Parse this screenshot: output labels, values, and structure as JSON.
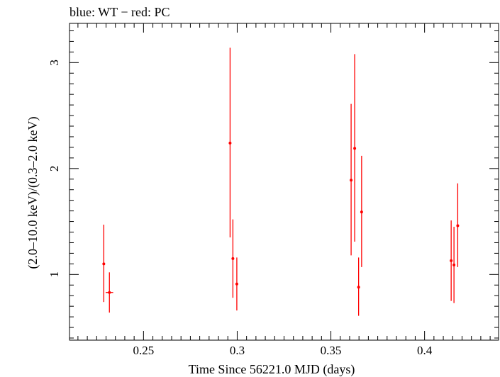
{
  "chart_data": {
    "type": "scatter",
    "title": "blue: WT − red: PC",
    "xlabel": "Time Since 56221.0 MJD (days)",
    "ylabel": "(2.0–10.0 keV)/(0.3–2.0 keV)",
    "xlim": [
      0.2105,
      0.4395
    ],
    "ylim": [
      0.38,
      3.37
    ],
    "x_ticks": [
      0.25,
      0.3,
      0.35,
      0.4
    ],
    "x_tick_labels": [
      "0.25",
      "0.3",
      "0.35",
      "0.4"
    ],
    "y_ticks": [
      1,
      2,
      3
    ],
    "y_tick_labels": [
      "1",
      "2",
      "3"
    ],
    "grid": false,
    "series": [
      {
        "name": "PC",
        "color": "#ff0000",
        "points": [
          {
            "x": 0.2288,
            "y": 1.1,
            "xerr": 0.0005,
            "ylo": 0.74,
            "yhi": 1.47
          },
          {
            "x": 0.2318,
            "y": 0.83,
            "xerr": 0.002,
            "ylo": 0.64,
            "yhi": 1.02
          },
          {
            "x": 0.2962,
            "y": 2.24,
            "xerr": 0.0005,
            "ylo": 1.35,
            "yhi": 3.14
          },
          {
            "x": 0.2977,
            "y": 1.15,
            "xerr": 0.0005,
            "ylo": 0.78,
            "yhi": 1.52
          },
          {
            "x": 0.2998,
            "y": 0.91,
            "xerr": 0.0005,
            "ylo": 0.66,
            "yhi": 1.16
          },
          {
            "x": 0.3608,
            "y": 1.89,
            "xerr": 0.0005,
            "ylo": 1.18,
            "yhi": 2.61
          },
          {
            "x": 0.3627,
            "y": 2.19,
            "xerr": 0.0005,
            "ylo": 1.31,
            "yhi": 3.08
          },
          {
            "x": 0.3648,
            "y": 0.88,
            "xerr": 0.0005,
            "ylo": 0.61,
            "yhi": 1.16
          },
          {
            "x": 0.3664,
            "y": 1.59,
            "xerr": 0.0005,
            "ylo": 1.07,
            "yhi": 2.12
          },
          {
            "x": 0.4142,
            "y": 1.13,
            "xerr": 0.0005,
            "ylo": 0.75,
            "yhi": 1.51
          },
          {
            "x": 0.4157,
            "y": 1.09,
            "xerr": 0.0005,
            "ylo": 0.73,
            "yhi": 1.45
          },
          {
            "x": 0.4177,
            "y": 1.46,
            "xerr": 0.0005,
            "ylo": 1.07,
            "yhi": 1.86
          }
        ]
      }
    ]
  }
}
